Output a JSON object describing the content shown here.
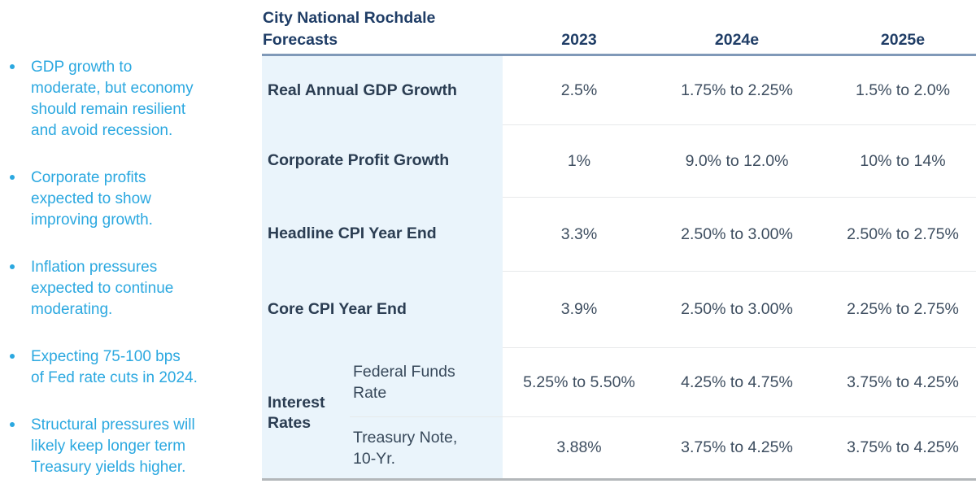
{
  "colors": {
    "accent_cyan": "#2BA8E0",
    "navy": "#1F3D66",
    "label_text": "#2B3D52",
    "value_text": "#3E4E60",
    "label_column_bg": "#EAF4FB",
    "header_rule": "#8099B8",
    "row_rule": "#E7E9EA",
    "bottom_rule": "#B3B7BA"
  },
  "bullets": {
    "items": [
      "GDP growth to\nmoderate, but economy\nshould remain resilient\nand avoid recession.",
      "Corporate profits\nexpected to show\nimproving growth.",
      "Inflation pressures\nexpected to continue\nmoderating.",
      "Expecting 75-100 bps\nof Fed rate cuts in 2024.",
      "Structural pressures will\nlikely keep longer term\nTreasury yields higher."
    ]
  },
  "table": {
    "title": "City National Rochdale\nForecasts",
    "columns": [
      "2023",
      "2024e",
      "2025e"
    ],
    "rows": [
      {
        "label": "Real Annual GDP Growth",
        "y2023": "2.5%",
        "y2024e": "1.75% to 2.25%",
        "y2025e": "1.5% to 2.0%"
      },
      {
        "label": "Corporate Profit Growth",
        "y2023": "1%",
        "y2024e": "9.0% to 12.0%",
        "y2025e": "10% to 14%"
      },
      {
        "label": "Headline CPI Year End",
        "y2023": "3.3%",
        "y2024e": "2.50% to 3.00%",
        "y2025e": "2.50% to 2.75%"
      },
      {
        "label": "Core CPI Year End",
        "y2023": "3.9%",
        "y2024e": "2.50% to 3.00%",
        "y2025e": "2.25% to 2.75%"
      },
      {
        "group": "Interest\nRates",
        "label": "Federal Funds\nRate",
        "y2023": "5.25% to 5.50%",
        "y2024e": "4.25% to 4.75%",
        "y2025e": "3.75% to 4.25%"
      },
      {
        "label": "Treasury Note,\n10-Yr.",
        "y2023": "3.88%",
        "y2024e": "3.75% to 4.25%",
        "y2025e": "3.75% to 4.25%"
      }
    ]
  }
}
